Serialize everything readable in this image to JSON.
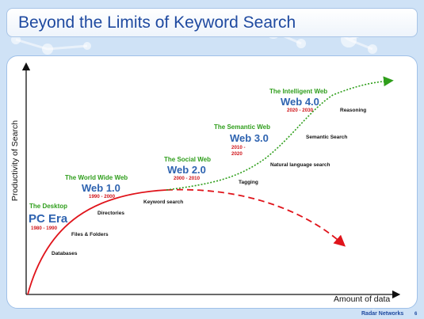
{
  "title": "Beyond the Limits of Keyword Search",
  "axes": {
    "y_label": "Productivity of Search",
    "x_label": "Amount of data"
  },
  "eras": [
    {
      "name": "The Desktop",
      "label": "PC Era",
      "dates": "1980 - 1990"
    },
    {
      "name": "The World Wide Web",
      "label": "Web 1.0",
      "dates": "1990 - 2000"
    },
    {
      "name": "The Social Web",
      "label": "Web 2.0",
      "dates": "2000 - 2010"
    },
    {
      "name": "The Semantic Web",
      "label": "Web 3.0",
      "dates_line1": "2010 -",
      "dates_line2": "2020"
    },
    {
      "name": "The Intelligent Web",
      "label": "Web 4.0",
      "dates": "2020 - 2030"
    }
  ],
  "features": [
    "Databases",
    "Files & Folders",
    "Directories",
    "Keyword search",
    "Tagging",
    "Natural language search",
    "Semantic Search",
    "Reasoning"
  ],
  "footer": {
    "brand": "Radar Networks",
    "page": "6"
  },
  "colors": {
    "solid_curve": "#e0141b",
    "dashed_curve": "#e0141b",
    "green_curve": "#2e9e1a",
    "title": "#1f4aa0"
  }
}
